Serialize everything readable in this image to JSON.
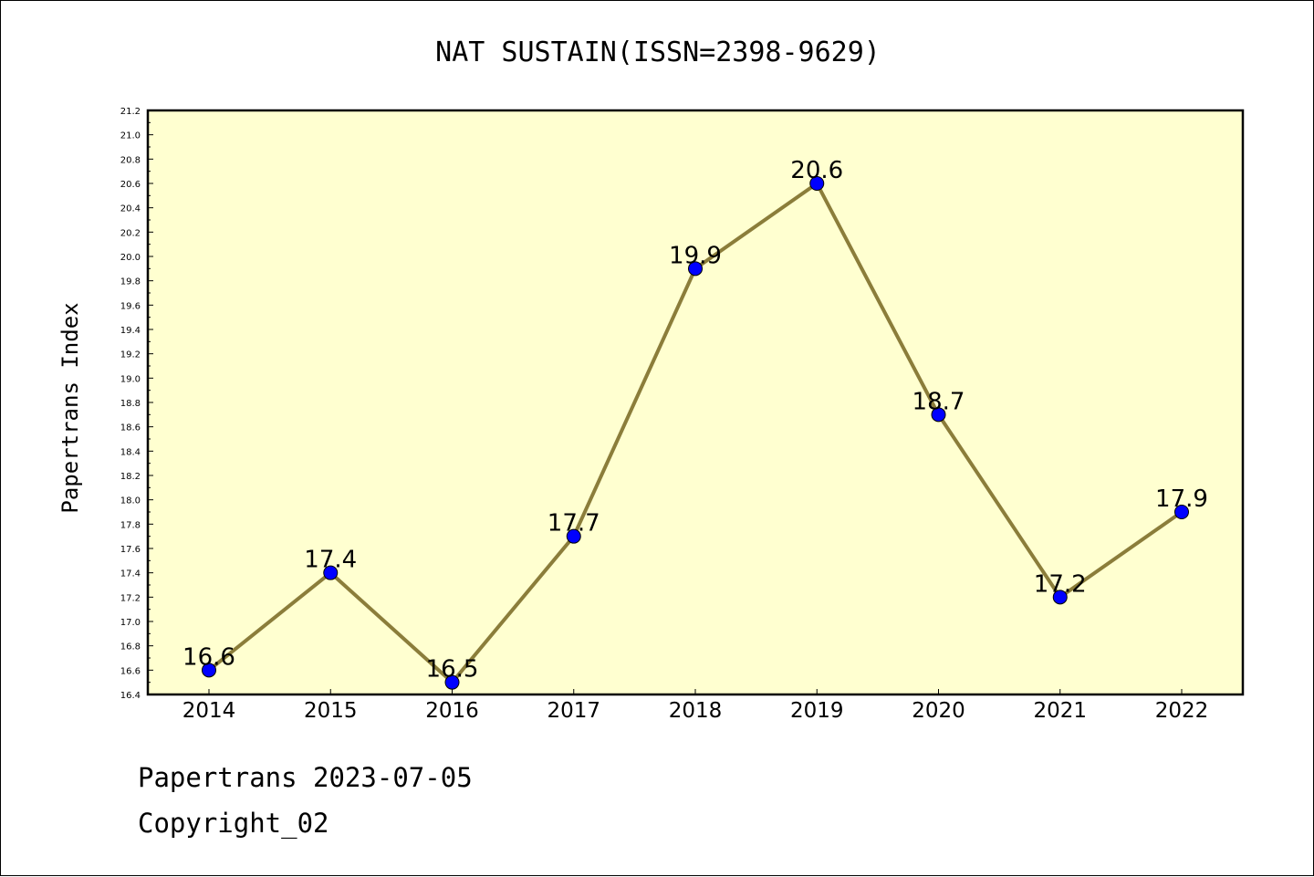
{
  "chart_data": {
    "type": "line",
    "title": "NAT SUSTAIN(ISSN=2398-9629)",
    "xlabel": "",
    "ylabel": "Papertrans Index",
    "categories": [
      "2014",
      "2015",
      "2016",
      "2017",
      "2018",
      "2019",
      "2020",
      "2021",
      "2022"
    ],
    "series": [
      {
        "values": [
          16.6,
          17.4,
          16.5,
          17.7,
          19.9,
          20.6,
          18.7,
          17.2,
          17.9
        ]
      }
    ],
    "data_labels": [
      "16.6",
      "17.4",
      "16.5",
      "17.7",
      "19.9",
      "20.6",
      "18.7",
      "17.2",
      "17.9"
    ],
    "ylim": [
      16.4,
      21.2
    ],
    "ytick_step": 0.2,
    "ytick_labels": [
      "16.4",
      "16.6",
      "16.8",
      "17.0",
      "17.2",
      "17.4",
      "17.6",
      "17.8",
      "18.0",
      "18.2",
      "18.4",
      "18.6",
      "18.8",
      "19.0",
      "19.2",
      "19.4",
      "19.6",
      "19.8",
      "20.0",
      "20.2",
      "20.4",
      "20.6",
      "20.8",
      "21.0",
      "21.2"
    ],
    "grid": false,
    "legend": "none",
    "colors": {
      "plot_background": "#ffffd0",
      "line": "#8b7d3a",
      "marker": "#0000ff",
      "axes": "#000000"
    }
  },
  "footer": {
    "line1": "Papertrans 2023-07-05",
    "line2": "Copyright_02"
  }
}
